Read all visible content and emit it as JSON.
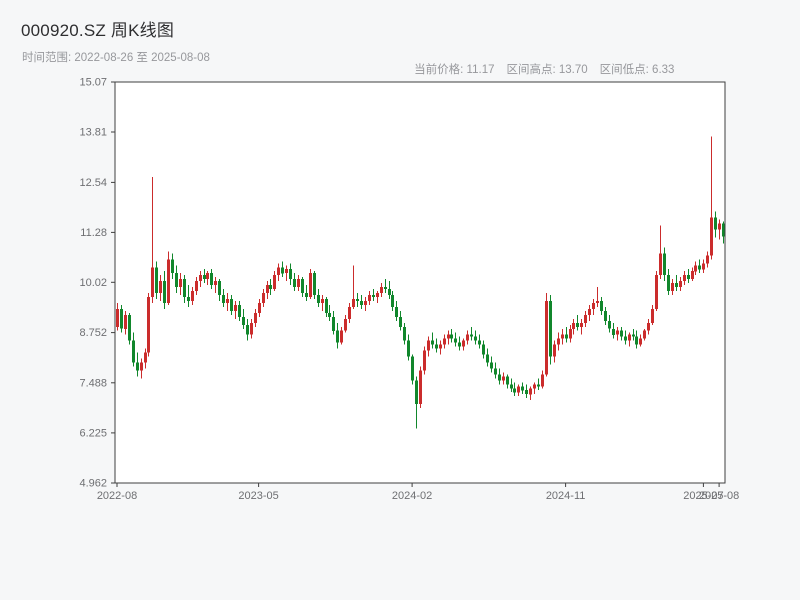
{
  "header": {
    "title": "000920.SZ 周K线图",
    "range_label": "时间范围: 2022-08-26 至 2025-08-08",
    "stats": {
      "current": "当前价格: 11.17",
      "high": "区间高点: 13.70",
      "low": "区间低点: 6.33"
    }
  },
  "chart_data": {
    "type": "candlestick",
    "title": "000920.SZ 周K线图",
    "symbol": "000920.SZ",
    "frequency": "weekly",
    "date_start": "2022-08-26",
    "date_end": "2025-08-08",
    "current_price": 11.17,
    "range_high": 13.7,
    "range_low": 6.33,
    "ylim": [
      4.962,
      15.07
    ],
    "grid": false,
    "up_color": "#cb2c2c",
    "down_color": "#11872c",
    "axis_color": "#3f3f3f",
    "label_color": "#6e6f72",
    "y_ticks": [
      "15.07",
      "13.81",
      "12.54",
      "11.28",
      "10.02",
      "8.752",
      "7.488",
      "6.225",
      "4.962"
    ],
    "y_tick_values": [
      15.07,
      13.81,
      12.54,
      11.28,
      10.02,
      8.752,
      7.488,
      6.225,
      4.962
    ],
    "x_ticks": [
      {
        "label": "2022-08",
        "index": 0
      },
      {
        "label": "2023-05",
        "index": 36
      },
      {
        "label": "2024-02",
        "index": 75
      },
      {
        "label": "2024-11",
        "index": 114
      },
      {
        "label": "2025-07",
        "index": 149
      },
      {
        "label": "2025-08",
        "index": 153
      }
    ],
    "ohlc": [
      [
        8.9,
        9.5,
        8.8,
        9.35
      ],
      [
        9.35,
        9.45,
        8.75,
        8.85
      ],
      [
        8.85,
        9.3,
        8.7,
        9.2
      ],
      [
        9.2,
        9.25,
        8.45,
        8.55
      ],
      [
        8.55,
        8.75,
        7.9,
        8.0
      ],
      [
        8.0,
        8.25,
        7.65,
        7.8
      ],
      [
        7.8,
        8.1,
        7.6,
        8.0
      ],
      [
        8.0,
        8.35,
        7.85,
        8.25
      ],
      [
        8.25,
        9.75,
        8.15,
        9.65
      ],
      [
        9.65,
        12.68,
        9.5,
        10.4
      ],
      [
        10.4,
        10.55,
        9.6,
        9.75
      ],
      [
        9.75,
        10.2,
        9.55,
        10.05
      ],
      [
        10.05,
        10.3,
        9.35,
        9.5
      ],
      [
        9.5,
        10.8,
        9.45,
        10.6
      ],
      [
        10.6,
        10.75,
        10.1,
        10.25
      ],
      [
        10.25,
        10.45,
        9.75,
        9.9
      ],
      [
        9.9,
        10.25,
        9.7,
        10.1
      ],
      [
        10.1,
        10.2,
        9.5,
        9.65
      ],
      [
        9.65,
        9.95,
        9.4,
        9.55
      ],
      [
        9.55,
        9.9,
        9.45,
        9.8
      ],
      [
        9.8,
        10.15,
        9.7,
        10.05
      ],
      [
        10.05,
        10.3,
        9.9,
        10.2
      ],
      [
        10.2,
        10.35,
        10.0,
        10.1
      ],
      [
        10.1,
        10.3,
        9.95,
        10.25
      ],
      [
        10.25,
        10.35,
        9.85,
        9.95
      ],
      [
        9.95,
        10.15,
        9.75,
        10.05
      ],
      [
        10.05,
        10.1,
        9.55,
        9.7
      ],
      [
        9.7,
        9.85,
        9.4,
        9.5
      ],
      [
        9.5,
        9.75,
        9.3,
        9.6
      ],
      [
        9.6,
        9.7,
        9.2,
        9.3
      ],
      [
        9.3,
        9.55,
        9.1,
        9.45
      ],
      [
        9.45,
        9.55,
        9.05,
        9.15
      ],
      [
        9.15,
        9.35,
        8.85,
        8.95
      ],
      [
        8.95,
        9.1,
        8.55,
        8.7
      ],
      [
        8.7,
        9.1,
        8.6,
        9.0
      ],
      [
        9.0,
        9.35,
        8.9,
        9.25
      ],
      [
        9.25,
        9.6,
        9.15,
        9.5
      ],
      [
        9.5,
        9.85,
        9.4,
        9.75
      ],
      [
        9.75,
        10.05,
        9.6,
        9.95
      ],
      [
        9.95,
        10.1,
        9.7,
        9.85
      ],
      [
        9.85,
        10.3,
        9.8,
        10.2
      ],
      [
        10.2,
        10.5,
        10.05,
        10.4
      ],
      [
        10.4,
        10.55,
        10.15,
        10.25
      ],
      [
        10.25,
        10.45,
        10.05,
        10.35
      ],
      [
        10.35,
        10.5,
        9.95,
        10.1
      ],
      [
        10.1,
        10.25,
        9.8,
        9.9
      ],
      [
        9.9,
        10.2,
        9.8,
        10.1
      ],
      [
        10.1,
        10.15,
        9.65,
        9.75
      ],
      [
        9.75,
        9.95,
        9.55,
        9.65
      ],
      [
        9.65,
        10.35,
        9.6,
        10.25
      ],
      [
        10.25,
        10.3,
        9.6,
        9.7
      ],
      [
        9.7,
        9.85,
        9.4,
        9.5
      ],
      [
        9.5,
        9.7,
        9.3,
        9.6
      ],
      [
        9.6,
        9.65,
        9.15,
        9.25
      ],
      [
        9.25,
        9.45,
        9.05,
        9.15
      ],
      [
        9.15,
        9.3,
        8.7,
        8.8
      ],
      [
        8.8,
        9.0,
        8.35,
        8.5
      ],
      [
        8.5,
        8.9,
        8.45,
        8.8
      ],
      [
        8.8,
        9.2,
        8.75,
        9.1
      ],
      [
        9.1,
        9.5,
        9.0,
        9.4
      ],
      [
        9.4,
        10.45,
        9.35,
        9.6
      ],
      [
        9.6,
        9.75,
        9.4,
        9.55
      ],
      [
        9.55,
        9.7,
        9.35,
        9.45
      ],
      [
        9.45,
        9.65,
        9.3,
        9.55
      ],
      [
        9.55,
        9.8,
        9.45,
        9.7
      ],
      [
        9.7,
        9.85,
        9.55,
        9.65
      ],
      [
        9.65,
        9.8,
        9.5,
        9.75
      ],
      [
        9.75,
        10.0,
        9.65,
        9.9
      ],
      [
        9.9,
        10.1,
        9.75,
        9.85
      ],
      [
        9.85,
        10.05,
        9.6,
        9.7
      ],
      [
        9.7,
        9.8,
        9.3,
        9.4
      ],
      [
        9.4,
        9.55,
        9.05,
        9.15
      ],
      [
        9.15,
        9.3,
        8.8,
        8.9
      ],
      [
        8.9,
        9.0,
        8.45,
        8.55
      ],
      [
        8.55,
        8.7,
        8.05,
        8.15
      ],
      [
        8.15,
        8.2,
        7.45,
        7.55
      ],
      [
        7.55,
        7.65,
        6.33,
        6.95
      ],
      [
        6.95,
        7.9,
        6.85,
        7.8
      ],
      [
        7.8,
        8.4,
        7.7,
        8.3
      ],
      [
        8.3,
        8.65,
        8.15,
        8.55
      ],
      [
        8.55,
        8.75,
        8.35,
        8.45
      ],
      [
        8.45,
        8.6,
        8.25,
        8.35
      ],
      [
        8.35,
        8.55,
        8.2,
        8.45
      ],
      [
        8.45,
        8.7,
        8.35,
        8.6
      ],
      [
        8.6,
        8.8,
        8.45,
        8.7
      ],
      [
        8.7,
        8.85,
        8.5,
        8.6
      ],
      [
        8.6,
        8.75,
        8.4,
        8.5
      ],
      [
        8.5,
        8.65,
        8.3,
        8.4
      ],
      [
        8.4,
        8.6,
        8.3,
        8.55
      ],
      [
        8.55,
        8.8,
        8.45,
        8.7
      ],
      [
        8.7,
        8.9,
        8.55,
        8.65
      ],
      [
        8.65,
        8.8,
        8.45,
        8.55
      ],
      [
        8.55,
        8.7,
        8.35,
        8.45
      ],
      [
        8.45,
        8.55,
        8.1,
        8.2
      ],
      [
        8.2,
        8.35,
        7.9,
        8.0
      ],
      [
        8.0,
        8.15,
        7.75,
        7.85
      ],
      [
        7.85,
        8.0,
        7.6,
        7.7
      ],
      [
        7.7,
        7.85,
        7.45,
        7.55
      ],
      [
        7.55,
        7.75,
        7.45,
        7.65
      ],
      [
        7.65,
        7.7,
        7.35,
        7.45
      ],
      [
        7.45,
        7.6,
        7.25,
        7.35
      ],
      [
        7.35,
        7.5,
        7.15,
        7.25
      ],
      [
        7.25,
        7.45,
        7.15,
        7.4
      ],
      [
        7.4,
        7.5,
        7.2,
        7.3
      ],
      [
        7.3,
        7.45,
        7.1,
        7.2
      ],
      [
        7.2,
        7.4,
        7.05,
        7.35
      ],
      [
        7.35,
        7.5,
        7.2,
        7.45
      ],
      [
        7.45,
        7.6,
        7.3,
        7.4
      ],
      [
        7.4,
        7.8,
        7.35,
        7.7
      ],
      [
        7.7,
        9.75,
        7.65,
        9.55
      ],
      [
        9.55,
        9.7,
        7.95,
        8.15
      ],
      [
        8.15,
        8.55,
        8.0,
        8.45
      ],
      [
        8.45,
        8.75,
        8.3,
        8.6
      ],
      [
        8.6,
        8.85,
        8.45,
        8.7
      ],
      [
        8.7,
        8.9,
        8.5,
        8.6
      ],
      [
        8.6,
        8.95,
        8.5,
        8.85
      ],
      [
        8.85,
        9.1,
        8.7,
        9.0
      ],
      [
        9.0,
        9.2,
        8.8,
        8.9
      ],
      [
        8.9,
        9.1,
        8.7,
        9.0
      ],
      [
        9.0,
        9.3,
        8.9,
        9.2
      ],
      [
        9.2,
        9.45,
        9.05,
        9.35
      ],
      [
        9.35,
        9.6,
        9.2,
        9.5
      ],
      [
        9.5,
        9.9,
        9.4,
        9.55
      ],
      [
        9.55,
        9.65,
        9.2,
        9.3
      ],
      [
        9.3,
        9.4,
        8.95,
        9.05
      ],
      [
        9.05,
        9.2,
        8.75,
        8.85
      ],
      [
        8.85,
        9.0,
        8.6,
        8.7
      ],
      [
        8.7,
        8.9,
        8.55,
        8.8
      ],
      [
        8.8,
        8.9,
        8.55,
        8.65
      ],
      [
        8.65,
        8.8,
        8.45,
        8.55
      ],
      [
        8.55,
        8.75,
        8.4,
        8.7
      ],
      [
        8.7,
        8.85,
        8.55,
        8.65
      ],
      [
        8.65,
        8.8,
        8.35,
        8.45
      ],
      [
        8.45,
        8.7,
        8.4,
        8.6
      ],
      [
        8.6,
        8.85,
        8.55,
        8.8
      ],
      [
        8.8,
        9.1,
        8.7,
        9.0
      ],
      [
        9.0,
        9.45,
        8.95,
        9.35
      ],
      [
        9.35,
        10.3,
        9.3,
        10.2
      ],
      [
        10.2,
        11.45,
        10.1,
        10.75
      ],
      [
        10.75,
        10.9,
        10.05,
        10.2
      ],
      [
        10.2,
        10.35,
        9.7,
        9.8
      ],
      [
        9.8,
        10.1,
        9.7,
        10.0
      ],
      [
        10.0,
        10.2,
        9.8,
        9.9
      ],
      [
        9.9,
        10.15,
        9.8,
        10.05
      ],
      [
        10.05,
        10.3,
        9.95,
        10.2
      ],
      [
        10.2,
        10.35,
        10.0,
        10.1
      ],
      [
        10.1,
        10.4,
        10.05,
        10.3
      ],
      [
        10.3,
        10.55,
        10.2,
        10.45
      ],
      [
        10.45,
        10.6,
        10.25,
        10.35
      ],
      [
        10.35,
        10.6,
        10.25,
        10.5
      ],
      [
        10.5,
        10.8,
        10.4,
        10.7
      ],
      [
        10.7,
        13.7,
        10.6,
        11.65
      ],
      [
        11.65,
        11.8,
        11.15,
        11.35
      ],
      [
        11.35,
        11.6,
        11.1,
        11.5
      ],
      [
        11.5,
        11.55,
        11.0,
        11.17
      ]
    ]
  }
}
